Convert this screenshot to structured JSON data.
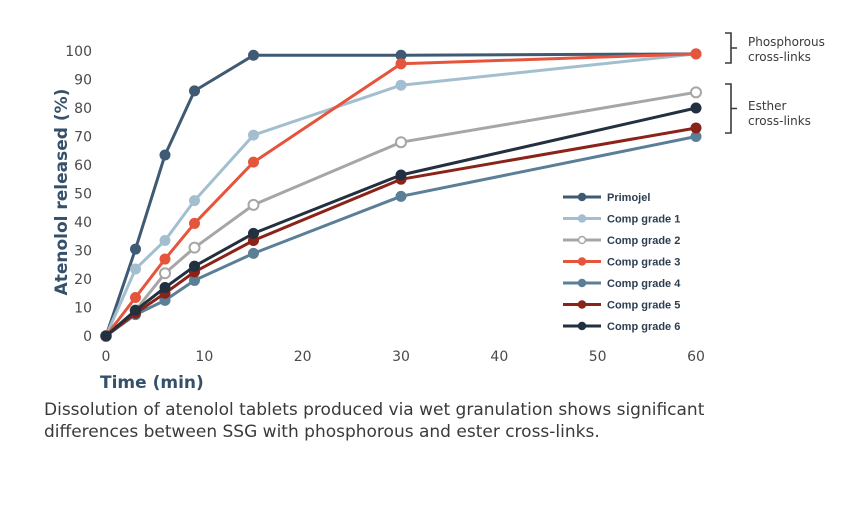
{
  "chart_data": {
    "type": "line",
    "title": "",
    "xlabel": "Time (min)",
    "ylabel": "Atenolol released (%)",
    "xlim": [
      0,
      60
    ],
    "ylim": [
      0,
      100
    ],
    "x_ticks": [
      0,
      10,
      20,
      30,
      40,
      50,
      60
    ],
    "y_ticks": [
      0,
      10,
      20,
      30,
      40,
      50,
      60,
      70,
      80,
      90,
      100
    ],
    "x": [
      0,
      3,
      6,
      9,
      15,
      30,
      60
    ],
    "series": [
      {
        "name": "Primojel",
        "color": "#3f5a73",
        "marker": "filled",
        "values": [
          0,
          30.5,
          63.5,
          86,
          98.5,
          98.5,
          99
        ]
      },
      {
        "name": "Comp grade 1",
        "color": "#a3bfcf",
        "marker": "filled",
        "values": [
          0,
          23.5,
          33.5,
          47.5,
          70.5,
          88,
          99
        ]
      },
      {
        "name": "Comp grade 2",
        "color": "#a6a6a6",
        "marker": "open",
        "values": [
          0,
          9,
          22,
          31,
          46,
          68,
          85.5
        ]
      },
      {
        "name": "Comp grade 3",
        "color": "#e5553c",
        "marker": "filled",
        "values": [
          0,
          13.5,
          27,
          39.5,
          61,
          95.5,
          99
        ]
      },
      {
        "name": "Comp grade 4",
        "color": "#5a7f96",
        "marker": "filled",
        "values": [
          0,
          7.5,
          12.5,
          19.5,
          29,
          49,
          70
        ]
      },
      {
        "name": "Comp grade 5",
        "color": "#8b2318",
        "marker": "filled",
        "values": [
          0,
          8,
          15,
          22.5,
          33.5,
          55,
          73
        ]
      },
      {
        "name": "Comp grade 6",
        "color": "#22303f",
        "marker": "filled",
        "values": [
          0,
          9,
          17,
          24.5,
          36,
          56.5,
          80
        ]
      }
    ],
    "annotations": [
      {
        "text_lines": [
          "Phosphorous",
          "cross-links"
        ],
        "applies_to": [
          "Primojel",
          "Comp grade 1",
          "Comp grade 3"
        ]
      },
      {
        "text_lines": [
          "Esther",
          "cross-links"
        ],
        "applies_to": [
          "Comp grade 2",
          "Comp grade 4",
          "Comp grade 5",
          "Comp grade 6"
        ]
      }
    ],
    "legend_position": "center-right"
  },
  "caption": "Dissolution of atenolol tablets produced via wet granulation shows significant differences between SSG with phosphorous and ester cross-links."
}
